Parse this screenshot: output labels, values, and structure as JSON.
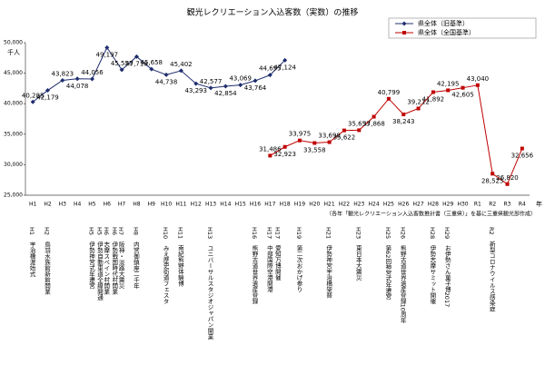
{
  "chart_data": {
    "type": "line",
    "title": "観光レクリエーション入込客数（実数）の推移",
    "y_unit": "千人",
    "x_unit": "年",
    "source": "（各年「観光レクリエーション入込客数推計書（三重県）」を基に三重県観光部作成）",
    "categories": [
      "H1",
      "H2",
      "H3",
      "H4",
      "H5",
      "H6",
      "H7",
      "H8",
      "H9",
      "H10",
      "H11",
      "H12",
      "H13",
      "H14",
      "H15",
      "H16",
      "H17",
      "H18",
      "H19",
      "H20",
      "H21",
      "H22",
      "H23",
      "H24",
      "H25",
      "H26",
      "H27",
      "H28",
      "H29",
      "H30",
      "R1",
      "R2",
      "R3",
      "R4"
    ],
    "series": [
      {
        "name": "県全体（旧基準）",
        "color": "#1f2d6e",
        "marker": "diamond",
        "values": [
          40285,
          42179,
          43823,
          44078,
          44056,
          49197,
          45553,
          47718,
          45658,
          44738,
          45402,
          43293,
          42577,
          42854,
          43069,
          43764,
          44695,
          47124,
          null,
          null,
          null,
          null,
          null,
          null,
          null,
          null,
          null,
          null,
          null,
          null,
          null,
          null,
          null,
          null
        ],
        "value_labels": [
          "40,285",
          "42,179",
          "43,823",
          "44,078",
          "44,056",
          "49,197",
          "45,553",
          "47,718",
          "45,658",
          "44,738",
          "45,402",
          "43,293",
          "42,577",
          "42,854",
          "43,069",
          "43,764",
          "44,695",
          "47,124",
          null,
          null,
          null,
          null,
          null,
          null,
          null,
          null,
          null,
          null,
          null,
          null,
          null,
          null,
          null,
          null
        ]
      },
      {
        "name": "県全体（全国基準）",
        "color": "#c00000",
        "marker": "square",
        "values": [
          null,
          null,
          null,
          null,
          null,
          null,
          null,
          null,
          null,
          null,
          null,
          null,
          null,
          null,
          null,
          null,
          31486,
          32923,
          33975,
          33558,
          33698,
          35622,
          35653,
          37868,
          40799,
          38243,
          39212,
          41892,
          42195,
          42605,
          43040,
          28525,
          26820,
          32656
        ],
        "value_labels": [
          null,
          null,
          null,
          null,
          null,
          null,
          null,
          null,
          null,
          null,
          null,
          null,
          null,
          null,
          null,
          null,
          "31,486",
          "32,923",
          "33,975",
          "33,558",
          "33,698",
          "35,622",
          "35,653",
          "37,868",
          "40,799",
          "38,243",
          "39,212",
          "41,892",
          "42,195",
          "42,605",
          "43,040",
          "28,525",
          "26,820",
          "32,656"
        ]
      }
    ],
    "ylim": [
      25000,
      50000
    ],
    "yticks": [
      {
        "value": 25000,
        "label": "25,000"
      },
      {
        "value": 30000,
        "label": "30,000"
      },
      {
        "value": 35000,
        "label": "35,000"
      },
      {
        "value": 40000,
        "label": "40,000"
      },
      {
        "value": 45000,
        "label": "45,000"
      },
      {
        "value": 50000,
        "label": "50,000"
      }
    ],
    "grid": false,
    "legend": "top-right",
    "annotations": [
      {
        "label": "H1",
        "text": "宇治橋渡始式"
      },
      {
        "label": "H2",
        "text": "鳥羽水族館新館開業"
      },
      {
        "label": "H5",
        "text": "伊勢神宮式年遷宮"
      },
      {
        "label": "H5",
        "text": "伊勢自動車道全線開通"
      },
      {
        "label": "H6",
        "text": "志摩スペイン村開業"
      },
      {
        "label": "H6",
        "text": "伊勢戦国時代村開業"
      },
      {
        "label": "H7",
        "text": "阪神・淡路大震災"
      },
      {
        "label": "H8",
        "text": "内宮御鎮座二千年"
      },
      {
        "label": "H10",
        "text": "みえ歴史街道フェスタ"
      },
      {
        "label": "H11",
        "text": "南紀熊野体験博"
      },
      {
        "label": "H13",
        "text": "ユニバーサルスタジオジャパン開業"
      },
      {
        "label": "H16",
        "text": "熊野古道世界遺産登録"
      },
      {
        "label": "H17",
        "text": "中部国際空港開港"
      },
      {
        "label": "H17",
        "text": "愛知万博開催"
      },
      {
        "label": "H19",
        "text": "第二次おかげ参り"
      },
      {
        "label": "H21",
        "text": "伊勢神宮宇治橋架替"
      },
      {
        "label": "H23",
        "text": "東日本大震災"
      },
      {
        "label": "H25",
        "text": "第62回神宮式年遷宮"
      },
      {
        "label": "H26",
        "text": "熊野古道世界遺産登録10周年"
      },
      {
        "label": "H28",
        "text": "伊勢志摩サミット開催"
      },
      {
        "label": "H29",
        "text": "お伊勢さん菓子博2017"
      },
      {
        "label": "R2",
        "text": "新型コロナウイルス感染症"
      }
    ]
  }
}
